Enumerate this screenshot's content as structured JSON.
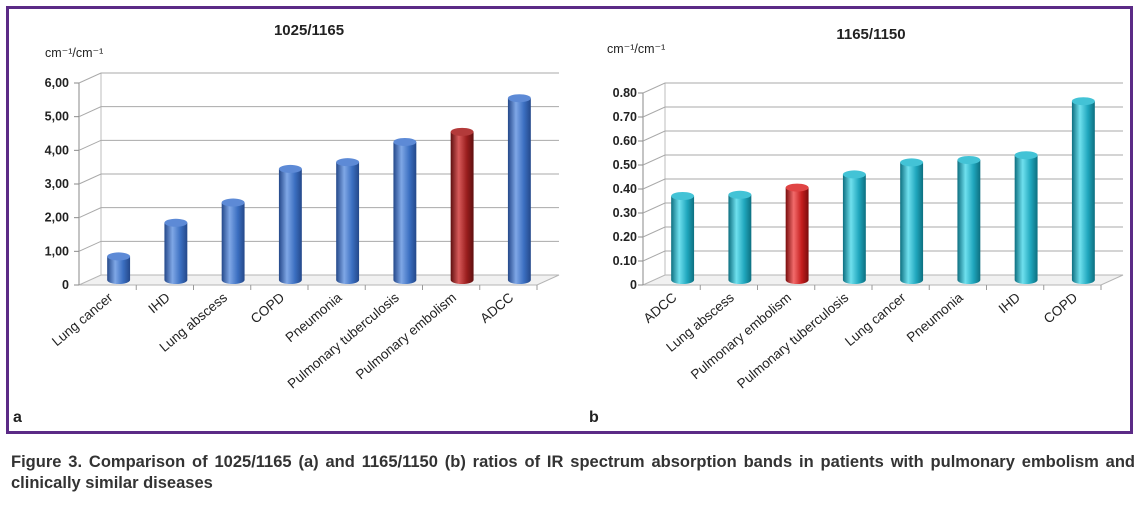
{
  "figure": {
    "caption": "Figure 3. Comparison of 1025/1165 (a) and 1165/1150 (b) ratios of IR spectrum absorption bands in patients with pulmonary embolism and clinically similar diseases"
  },
  "colors": {
    "frame": "#5b2a86",
    "blue_bar": "#3b6fc1",
    "red_bar": "#9a1e1e",
    "teal_bar": "#1fa6bd",
    "red_bar_b": "#c41d1d"
  },
  "chart_data": [
    {
      "type": "bar",
      "panel_label": "a",
      "title": "1025/1165",
      "ylabel": "cm⁻¹/cm⁻¹",
      "xlabel": "",
      "ylim": [
        0,
        6
      ],
      "yticks": [
        "0",
        "1,00",
        "2,00",
        "3,00",
        "4,00",
        "5,00",
        "6,00"
      ],
      "categories": [
        "Lung cancer",
        "IHD",
        "Lung abscess",
        "COPD",
        "Pneumonia",
        "Pulmonary tuberculosis",
        "Pulmonary embolism",
        "ADCC"
      ],
      "values": [
        0.7,
        1.7,
        2.3,
        3.3,
        3.5,
        4.1,
        4.4,
        5.4
      ],
      "highlight": "Pulmonary embolism",
      "grid": true,
      "legend": "none"
    },
    {
      "type": "bar",
      "panel_label": "b",
      "title": "1165/1150",
      "ylabel": "cm⁻¹/cm⁻¹",
      "xlabel": "",
      "ylim": [
        0,
        0.8
      ],
      "yticks": [
        "0",
        "0.10",
        "0.20",
        "0.30",
        "0.40",
        "0.50",
        "0.60",
        "0.70",
        "0.80"
      ],
      "categories": [
        "ADCC",
        "Lung abscess",
        "Pulmonary embolism",
        "Pulmonary tuberculosis",
        "Lung cancer",
        "Pneumonia",
        "IHD",
        "COPD"
      ],
      "values": [
        0.35,
        0.355,
        0.385,
        0.44,
        0.49,
        0.5,
        0.52,
        0.745
      ],
      "highlight": "Pulmonary embolism",
      "grid": true,
      "legend": "none"
    }
  ]
}
